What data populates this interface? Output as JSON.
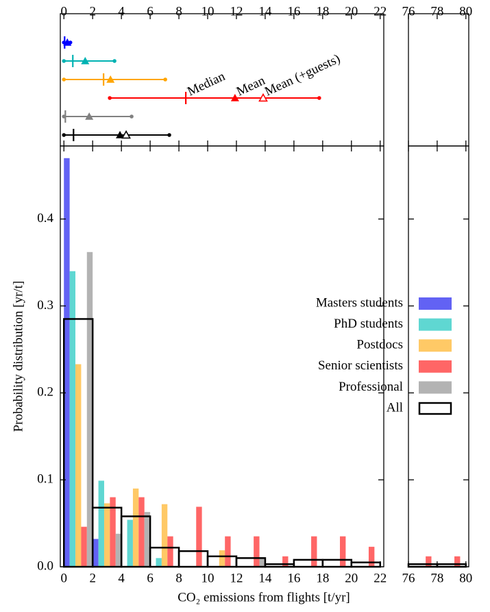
{
  "chart_data": [
    {
      "type": "histogram",
      "xlabel": "CO₂ emissions from flights [t/yr]",
      "ylabel": "Probability distribution [yr/t]",
      "bins": [
        0,
        2,
        4,
        6,
        8,
        10,
        12,
        14,
        16,
        18,
        20,
        22,
        76,
        78,
        80
      ],
      "xlim": [
        [
          -0.25,
          22.25
        ],
        [
          76,
          80.2
        ]
      ],
      "xticks": [
        0,
        2,
        4,
        6,
        8,
        10,
        12,
        14,
        16,
        18,
        20,
        22,
        76,
        78,
        80
      ],
      "ylim": [
        0,
        0.484
      ],
      "yticks": [
        {
          "value": 0,
          "label": "0.0"
        },
        0.1,
        0.2,
        0.3,
        0.4
      ],
      "legend": "right",
      "series": [
        {
          "name": "Masters students",
          "color": "#6262f4",
          "style": "bar",
          "values": [
            0.47,
            0.032,
            0,
            0,
            0,
            0,
            0,
            0,
            0,
            0,
            0,
            null,
            0,
            0
          ]
        },
        {
          "name": "PhD students",
          "color": "#5fd7d2",
          "style": "bar",
          "values": [
            0.34,
            0.099,
            0.054,
            0.01,
            0,
            0,
            0,
            0,
            0,
            0,
            0,
            null,
            0,
            0
          ]
        },
        {
          "name": "Postdocs",
          "color": "#ffc966",
          "style": "bar",
          "values": [
            0.233,
            0.073,
            0.09,
            0.072,
            0,
            0.019,
            0,
            0,
            0,
            0,
            0,
            null,
            0,
            0
          ]
        },
        {
          "name": "Senior scientists",
          "color": "#ff6666",
          "style": "bar",
          "values": [
            0.046,
            0.08,
            0.08,
            0.035,
            0.069,
            0.035,
            0.035,
            0.012,
            0.035,
            0.035,
            0.023,
            null,
            0.012,
            0.012
          ]
        },
        {
          "name": "Professional",
          "color": "#b3b3b3",
          "style": "bar",
          "values": [
            0.362,
            0.038,
            0.063,
            0,
            0,
            0,
            0.011,
            0,
            0,
            0,
            0,
            null,
            0,
            0
          ]
        },
        {
          "name": "All",
          "color": "#000000",
          "style": "step",
          "values": [
            0.285,
            0.068,
            0.058,
            0.022,
            0.018,
            0.012,
            0.01,
            0.003,
            0.008,
            0.008,
            0.005,
            null,
            0.003,
            0.003
          ]
        }
      ]
    },
    {
      "type": "range",
      "labels": [
        "Median",
        "Mean",
        "Mean (+guests)"
      ],
      "series": [
        {
          "color": "#0000ff",
          "min": 0,
          "median": 0.05,
          "mean": 0.24,
          "max": 0.45
        },
        {
          "color": "#00b2b2",
          "min": 0,
          "median": 0.62,
          "mean": 1.48,
          "max": 3.52
        },
        {
          "color": "#ffa500",
          "min": 0,
          "median": 2.76,
          "mean": 3.24,
          "max": 7.05
        },
        {
          "color": "#ff0000",
          "min": 3.19,
          "median": 8.48,
          "mean": 11.9,
          "mean_guests": 13.86,
          "max": 17.76
        },
        {
          "color": "#808080",
          "min": 0,
          "median": 0.1,
          "mean": 1.76,
          "max": 4.71
        },
        {
          "color": "#000000",
          "min": 0,
          "median": 0.67,
          "mean": 3.9,
          "mean_guests": 4.33,
          "max": 7.33
        }
      ]
    }
  ]
}
